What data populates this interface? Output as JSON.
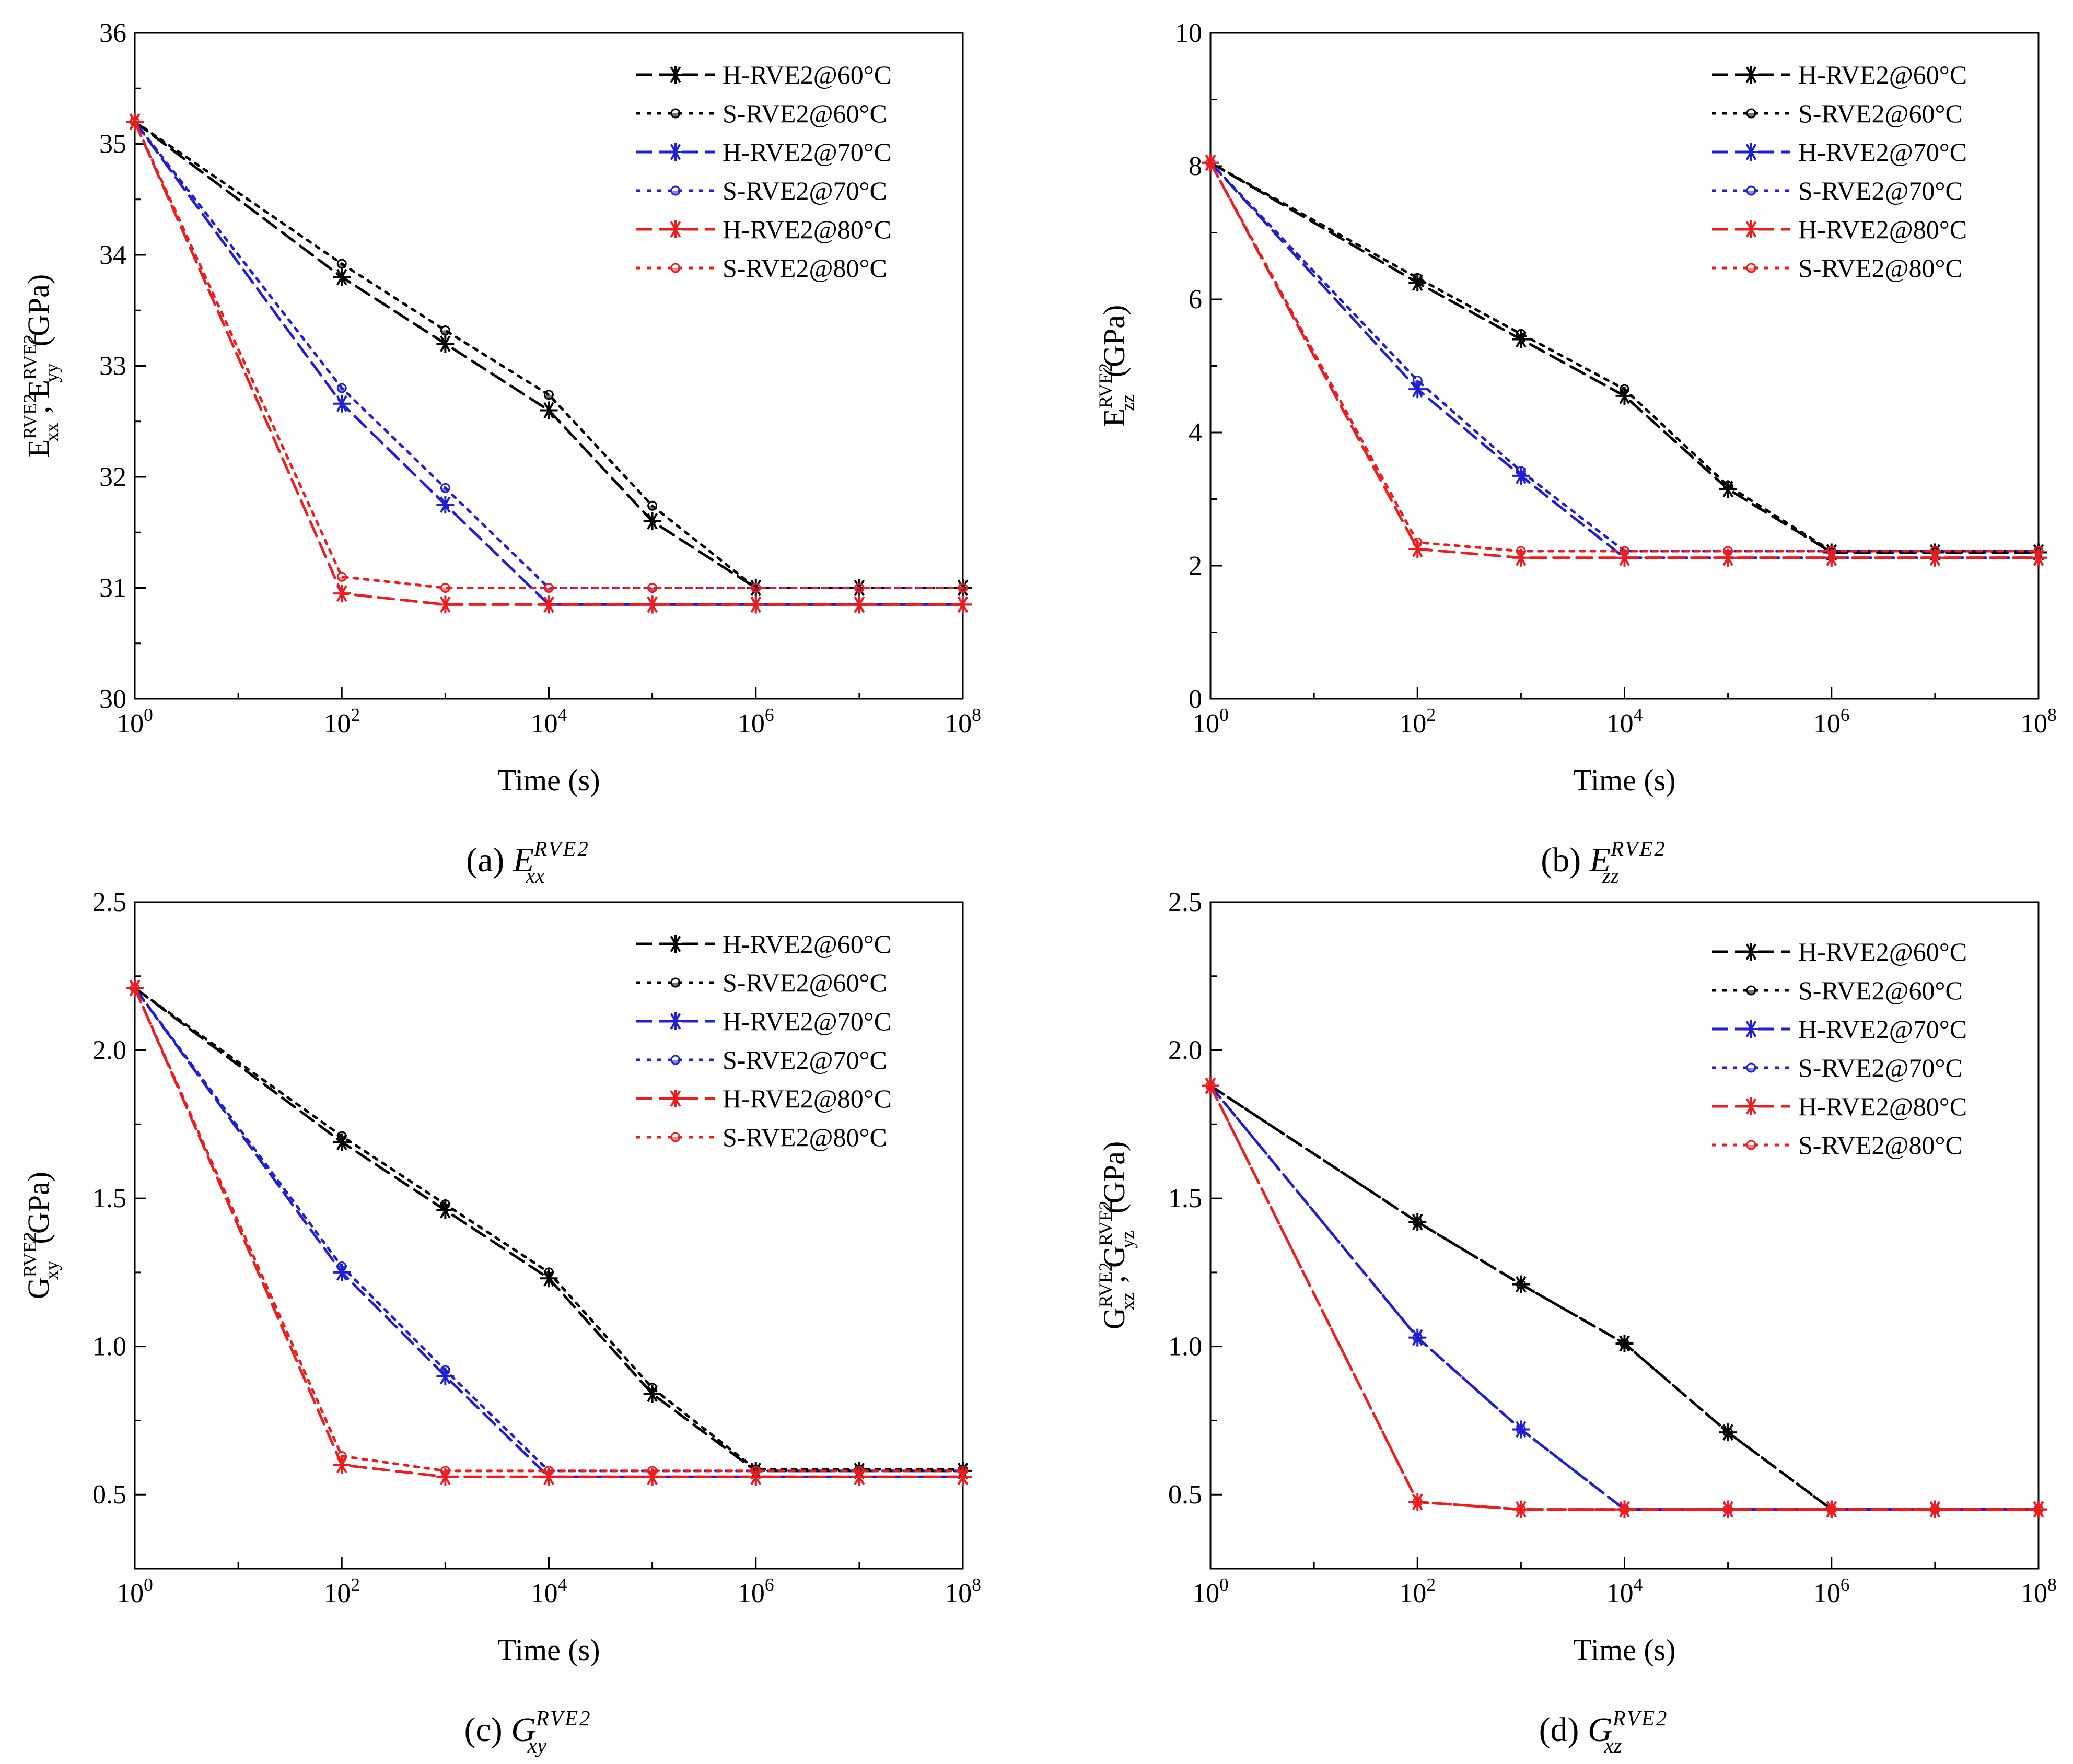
{
  "chart_data": [
    {
      "type": "line",
      "xscale": "log",
      "xlim": [
        1,
        100000000
      ],
      "ylim": [
        30,
        36
      ],
      "yticks": [
        30,
        31,
        32,
        33,
        34,
        35,
        36
      ],
      "xlabel": "Time (s)",
      "ylabel": {
        "main": "E",
        "sup1": "RVE2",
        "sub1": "xx",
        "sep": ", E",
        "sup2": "RVE2",
        "sub2": "yy",
        "unit": " (GPa)"
      },
      "caption": {
        "prefix": "(a) ",
        "sym": "E",
        "sup": "RVE2",
        "sub": "xx"
      },
      "legend_position": "top-right",
      "series": [
        {
          "name": "H-RVE2@60°C",
          "color": "#000000",
          "dash": "dash",
          "marker": "star",
          "x": [
            1,
            100,
            1000,
            10000,
            100000,
            1000000,
            10000000,
            100000000
          ],
          "y": [
            35.2,
            33.8,
            33.2,
            32.6,
            31.6,
            31.0,
            31.0,
            31.0
          ]
        },
        {
          "name": "S-RVE2@60°C",
          "color": "#000000",
          "dash": "dot",
          "marker": "circle",
          "x": [
            1,
            100,
            1000,
            10000,
            100000,
            1000000,
            10000000,
            100000000
          ],
          "y": [
            35.2,
            33.92,
            33.32,
            32.74,
            31.74,
            31.0,
            31.0,
            31.0
          ]
        },
        {
          "name": "H-RVE2@70°C",
          "color": "#1f1fd6",
          "dash": "dash",
          "marker": "star",
          "x": [
            1,
            100,
            1000,
            10000,
            100000,
            1000000,
            10000000,
            100000000
          ],
          "y": [
            35.2,
            32.66,
            31.75,
            30.85,
            30.85,
            30.85,
            30.85,
            30.85
          ]
        },
        {
          "name": "S-RVE2@70°C",
          "color": "#1f1fd6",
          "dash": "dot",
          "marker": "circle",
          "x": [
            1,
            100,
            1000,
            10000,
            100000,
            1000000,
            10000000,
            100000000
          ],
          "y": [
            35.2,
            32.8,
            31.9,
            31.0,
            31.0,
            31.0,
            31.0,
            31.0
          ]
        },
        {
          "name": "H-RVE2@80°C",
          "color": "#ee1c1c",
          "dash": "dash",
          "marker": "star",
          "x": [
            1,
            100,
            1000,
            10000,
            100000,
            1000000,
            10000000,
            100000000
          ],
          "y": [
            35.2,
            30.95,
            30.85,
            30.85,
            30.85,
            30.85,
            30.85,
            30.85
          ]
        },
        {
          "name": "S-RVE2@80°C",
          "color": "#ee1c1c",
          "dash": "dot",
          "marker": "circle",
          "x": [
            1,
            100,
            1000,
            10000,
            100000,
            1000000,
            10000000,
            100000000
          ],
          "y": [
            35.2,
            31.1,
            31.0,
            31.0,
            31.0,
            31.0,
            31.0,
            31.0
          ]
        }
      ]
    },
    {
      "type": "line",
      "xscale": "log",
      "xlim": [
        1,
        100000000
      ],
      "ylim": [
        0,
        10
      ],
      "yticks": [
        0,
        2,
        4,
        6,
        8,
        10
      ],
      "xlabel": "Time (s)",
      "ylabel": {
        "main": "E",
        "sup1": "RVE2",
        "sub1": "zz",
        "sep": "",
        "sup2": "",
        "sub2": "",
        "unit": " (GPa)"
      },
      "caption": {
        "prefix": "(b) ",
        "sym": "E",
        "sup": "RVE2",
        "sub": "zz"
      },
      "legend_position": "top-right",
      "series": [
        {
          "name": "H-RVE2@60°C",
          "color": "#000000",
          "dash": "dash",
          "marker": "star",
          "x": [
            1,
            100,
            1000,
            10000,
            100000,
            1000000,
            10000000,
            100000000
          ],
          "y": [
            8.05,
            6.25,
            5.4,
            4.55,
            3.15,
            2.2,
            2.2,
            2.2
          ]
        },
        {
          "name": "S-RVE2@60°C",
          "color": "#000000",
          "dash": "dot",
          "marker": "circle",
          "x": [
            1,
            100,
            1000,
            10000,
            100000,
            1000000,
            10000000,
            100000000
          ],
          "y": [
            8.05,
            6.32,
            5.48,
            4.65,
            3.2,
            2.22,
            2.22,
            2.22
          ]
        },
        {
          "name": "H-RVE2@70°C",
          "color": "#1f1fd6",
          "dash": "dash",
          "marker": "star",
          "x": [
            1,
            100,
            1000,
            10000,
            100000,
            1000000,
            10000000,
            100000000
          ],
          "y": [
            8.05,
            4.65,
            3.35,
            2.12,
            2.12,
            2.12,
            2.12,
            2.12
          ]
        },
        {
          "name": "S-RVE2@70°C",
          "color": "#1f1fd6",
          "dash": "dot",
          "marker": "circle",
          "x": [
            1,
            100,
            1000,
            10000,
            100000,
            1000000,
            10000000,
            100000000
          ],
          "y": [
            8.05,
            4.78,
            3.42,
            2.22,
            2.22,
            2.22,
            2.22,
            2.22
          ]
        },
        {
          "name": "H-RVE2@80°C",
          "color": "#ee1c1c",
          "dash": "dash",
          "marker": "star",
          "x": [
            1,
            100,
            1000,
            10000,
            100000,
            1000000,
            10000000,
            100000000
          ],
          "y": [
            8.05,
            2.25,
            2.12,
            2.12,
            2.12,
            2.12,
            2.12,
            2.12
          ]
        },
        {
          "name": "S-RVE2@80°C",
          "color": "#ee1c1c",
          "dash": "dot",
          "marker": "circle",
          "x": [
            1,
            100,
            1000,
            10000,
            100000,
            1000000,
            10000000,
            100000000
          ],
          "y": [
            8.05,
            2.35,
            2.22,
            2.22,
            2.22,
            2.22,
            2.22,
            2.22
          ]
        }
      ]
    },
    {
      "type": "line",
      "xscale": "log",
      "xlim": [
        1,
        100000000
      ],
      "ylim": [
        0.25,
        2.5
      ],
      "yticks": [
        0.5,
        1.0,
        1.5,
        2.0,
        2.5
      ],
      "ytick_labels": [
        "0.5",
        "1.0",
        "1.5",
        "2.0",
        "2.5"
      ],
      "xlabel": "Time (s)",
      "ylabel": {
        "main": "G",
        "sup1": "RVE2",
        "sub1": "xy",
        "sep": "",
        "sup2": "",
        "sub2": "",
        "unit": " (GPa)"
      },
      "caption": {
        "prefix": "(c) ",
        "sym": "G",
        "sup": "RVE2",
        "sub": "xy"
      },
      "legend_position": "top-right",
      "series": [
        {
          "name": "H-RVE2@60°C",
          "color": "#000000",
          "dash": "dash",
          "marker": "star",
          "x": [
            1,
            100,
            1000,
            10000,
            100000,
            1000000,
            10000000,
            100000000
          ],
          "y": [
            2.21,
            1.69,
            1.46,
            1.23,
            0.84,
            0.58,
            0.58,
            0.58
          ]
        },
        {
          "name": "S-RVE2@60°C",
          "color": "#000000",
          "dash": "dot",
          "marker": "circle",
          "x": [
            1,
            100,
            1000,
            10000,
            100000,
            1000000,
            10000000,
            100000000
          ],
          "y": [
            2.21,
            1.71,
            1.48,
            1.25,
            0.86,
            0.585,
            0.585,
            0.585
          ]
        },
        {
          "name": "H-RVE2@70°C",
          "color": "#1f1fd6",
          "dash": "dash",
          "marker": "star",
          "x": [
            1,
            100,
            1000,
            10000,
            100000,
            1000000,
            10000000,
            100000000
          ],
          "y": [
            2.21,
            1.25,
            0.9,
            0.56,
            0.56,
            0.56,
            0.56,
            0.56
          ]
        },
        {
          "name": "S-RVE2@70°C",
          "color": "#1f1fd6",
          "dash": "dot",
          "marker": "circle",
          "x": [
            1,
            100,
            1000,
            10000,
            100000,
            1000000,
            10000000,
            100000000
          ],
          "y": [
            2.21,
            1.27,
            0.92,
            0.58,
            0.58,
            0.58,
            0.58,
            0.58
          ]
        },
        {
          "name": "H-RVE2@80°C",
          "color": "#ee1c1c",
          "dash": "dash",
          "marker": "star",
          "x": [
            1,
            100,
            1000,
            10000,
            100000,
            1000000,
            10000000,
            100000000
          ],
          "y": [
            2.21,
            0.6,
            0.56,
            0.56,
            0.56,
            0.56,
            0.56,
            0.56
          ]
        },
        {
          "name": "S-RVE2@80°C",
          "color": "#ee1c1c",
          "dash": "dot",
          "marker": "circle",
          "x": [
            1,
            100,
            1000,
            10000,
            100000,
            1000000,
            10000000,
            100000000
          ],
          "y": [
            2.21,
            0.63,
            0.58,
            0.58,
            0.58,
            0.58,
            0.58,
            0.58
          ]
        }
      ]
    },
    {
      "type": "line",
      "xscale": "log",
      "xlim": [
        1,
        100000000
      ],
      "ylim": [
        0.25,
        2.5
      ],
      "yticks": [
        0.5,
        1.0,
        1.5,
        2.0,
        2.5
      ],
      "ytick_labels": [
        "0.5",
        "1.0",
        "1.5",
        "2.0",
        "2.5"
      ],
      "xlabel": "Time (s)",
      "ylabel": {
        "main": "G",
        "sup1": "RVE2",
        "sub1": "xz",
        "sep": ", G",
        "sup2": "RVE2",
        "sub2": "yz",
        "unit": " (GPa)"
      },
      "caption": {
        "prefix": "(d) ",
        "sym": "G",
        "sup": "RVE2",
        "sub": "xz"
      },
      "legend_position": "top-right",
      "series": [
        {
          "name": "H-RVE2@60°C",
          "color": "#000000",
          "dash": "dash",
          "marker": "star",
          "x": [
            1,
            100,
            1000,
            10000,
            100000,
            1000000,
            10000000,
            100000000
          ],
          "y": [
            1.88,
            1.42,
            1.21,
            1.01,
            0.71,
            0.45,
            0.45,
            0.45
          ]
        },
        {
          "name": "S-RVE2@60°C",
          "color": "#000000",
          "dash": "dot",
          "marker": "circle",
          "x": [
            1,
            100,
            1000,
            10000,
            100000,
            1000000,
            10000000,
            100000000
          ],
          "y": [
            1.88,
            1.42,
            1.21,
            1.01,
            0.71,
            0.45,
            0.45,
            0.45
          ]
        },
        {
          "name": "H-RVE2@70°C",
          "color": "#1f1fd6",
          "dash": "dash",
          "marker": "star",
          "x": [
            1,
            100,
            1000,
            10000,
            100000,
            1000000,
            10000000,
            100000000
          ],
          "y": [
            1.88,
            1.03,
            0.72,
            0.45,
            0.45,
            0.45,
            0.45,
            0.45
          ]
        },
        {
          "name": "S-RVE2@70°C",
          "color": "#1f1fd6",
          "dash": "dot",
          "marker": "circle",
          "x": [
            1,
            100,
            1000,
            10000,
            100000,
            1000000,
            10000000,
            100000000
          ],
          "y": [
            1.88,
            1.03,
            0.72,
            0.45,
            0.45,
            0.45,
            0.45,
            0.45
          ]
        },
        {
          "name": "H-RVE2@80°C",
          "color": "#ee1c1c",
          "dash": "dash",
          "marker": "star",
          "x": [
            1,
            100,
            1000,
            10000,
            100000,
            1000000,
            10000000,
            100000000
          ],
          "y": [
            1.88,
            0.475,
            0.45,
            0.45,
            0.45,
            0.45,
            0.45,
            0.45
          ]
        },
        {
          "name": "S-RVE2@80°C",
          "color": "#ee1c1c",
          "dash": "dot",
          "marker": "circle",
          "x": [
            1,
            100,
            1000,
            10000,
            100000,
            1000000,
            10000000,
            100000000
          ],
          "y": [
            1.88,
            0.475,
            0.45,
            0.45,
            0.45,
            0.45,
            0.45,
            0.45
          ]
        }
      ]
    }
  ]
}
